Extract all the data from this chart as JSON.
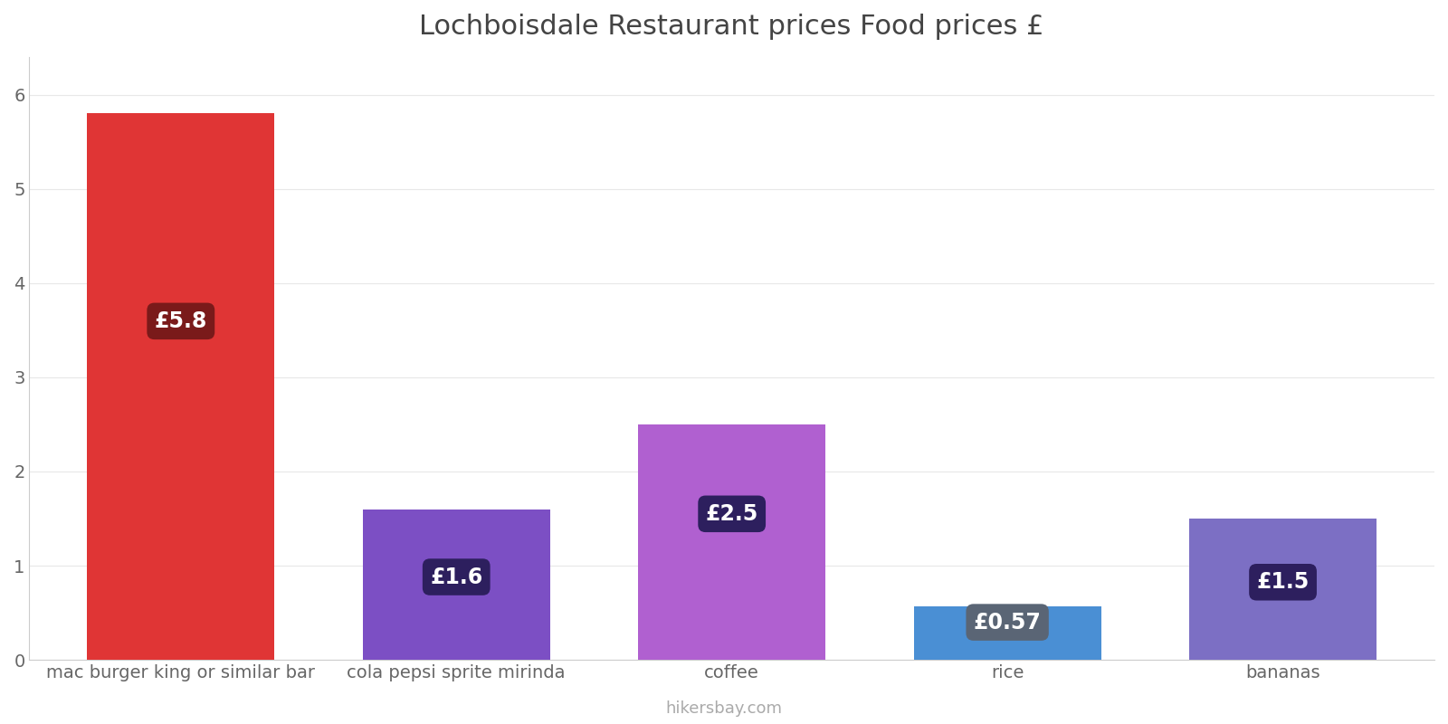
{
  "title": "Lochboisdale Restaurant prices Food prices £",
  "categories": [
    "mac burger king or similar bar",
    "cola pepsi sprite mirinda",
    "coffee",
    "rice",
    "bananas"
  ],
  "values": [
    5.8,
    1.6,
    2.5,
    0.57,
    1.5
  ],
  "bar_colors": [
    "#e03535",
    "#7c4fc4",
    "#b060d0",
    "#4a8fd4",
    "#7c6fc4"
  ],
  "label_texts": [
    "£5.8",
    "£1.6",
    "£2.5",
    "£0.57",
    "£1.5"
  ],
  "label_bg_colors": [
    "#7a1a1a",
    "#2d1f5e",
    "#2d1f5e",
    "#5a6575",
    "#2d1f5e"
  ],
  "ylim": [
    0,
    6.4
  ],
  "yticks": [
    0,
    1,
    2,
    3,
    4,
    5,
    6
  ],
  "footer_text": "hikersbay.com",
  "title_fontsize": 22,
  "tick_fontsize": 14,
  "footer_fontsize": 13,
  "label_fontsize": 17,
  "background_color": "#ffffff",
  "bar_width": 0.68
}
